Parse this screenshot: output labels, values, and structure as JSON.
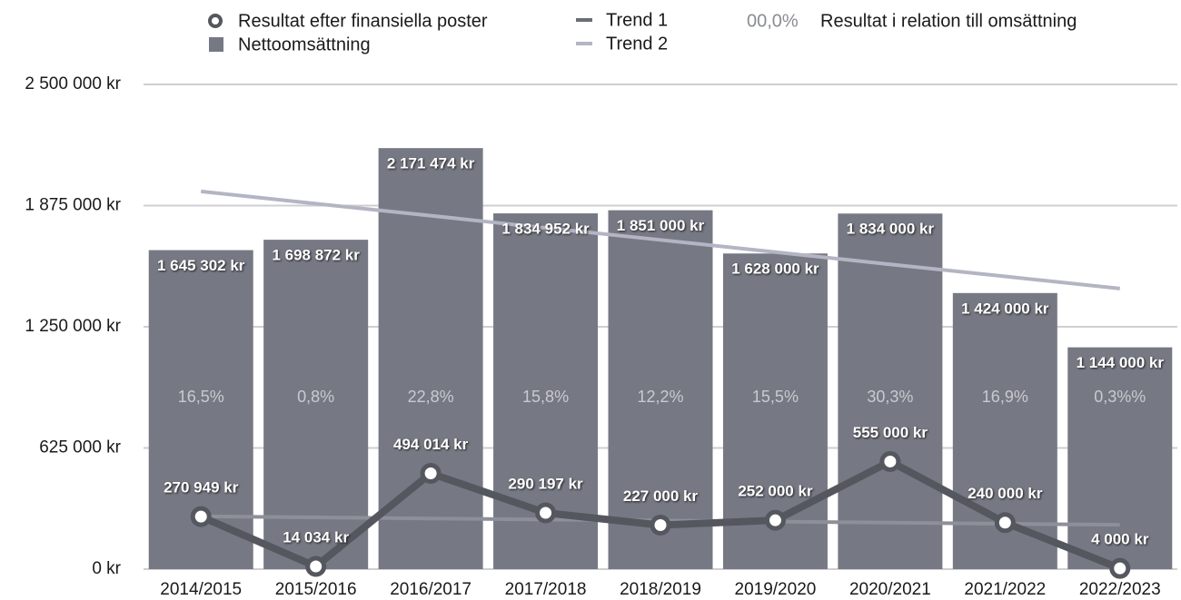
{
  "chart_data": {
    "type": "bar",
    "categories": [
      "2014/2015",
      "2015/2016",
      "2016/2017",
      "2017/2018",
      "2018/2019",
      "2019/2020",
      "2020/2021",
      "2021/2022",
      "2022/2023"
    ],
    "ylim": [
      0,
      2500000
    ],
    "yticks": [
      {
        "value": 0,
        "label": "0 kr"
      },
      {
        "value": 625000,
        "label": "625 000 kr"
      },
      {
        "value": 1250000,
        "label": "1 250 000 kr"
      },
      {
        "value": 1875000,
        "label": "1 875 000 kr"
      },
      {
        "value": 2500000,
        "label": "2 500 000 kr"
      }
    ],
    "grid": true,
    "series": [
      {
        "name": "Resultat efter finansiella poster",
        "type": "line",
        "color": "#55575f",
        "values": [
          270949,
          14034,
          494014,
          290197,
          227000,
          252000,
          555000,
          240000,
          4000
        ],
        "value_labels": [
          "270 949 kr",
          "14 034 kr",
          "494 014 kr",
          "290 197 kr",
          "227 000 kr",
          "252 000 kr",
          "555 000 kr",
          "240 000 kr",
          "4 000 kr"
        ]
      },
      {
        "name": "Nettoomsättning",
        "type": "bar",
        "color": "#767983",
        "values": [
          1645302,
          1698872,
          2171474,
          1834952,
          1851000,
          1628000,
          1834000,
          1424000,
          1144000
        ],
        "value_labels": [
          "1 645 302 kr",
          "1 698 872 kr",
          "2 171 474 kr",
          "1 834 952 kr",
          "1 851 000 kr",
          "1 628 000 kr",
          "1 834 000 kr",
          "1 424 000 kr",
          "1 144 000 kr"
        ]
      },
      {
        "name": "Trend 1",
        "type": "trend",
        "color": "#8d9099",
        "values": [
          272000,
          267000,
          261000,
          256000,
          251000,
          245000,
          240000,
          234000,
          229000
        ]
      },
      {
        "name": "Trend 2",
        "type": "trend",
        "color": "#b3b5c4",
        "values": [
          1948000,
          1885000,
          1823000,
          1760000,
          1698000,
          1635000,
          1572000,
          1510000,
          1447000
        ]
      }
    ],
    "ratio": {
      "name": "Resultat i relation till omsättning",
      "sample": "00,0%",
      "values": [
        16.5,
        0.8,
        22.8,
        15.8,
        12.2,
        15.5,
        30.3,
        16.9,
        0.3
      ],
      "value_labels": [
        "16,5%",
        "0,8%",
        "22,8%",
        "15,8%",
        "12,2%",
        "15,5%",
        "30,3%",
        "16,9%",
        "0,3%%"
      ]
    }
  }
}
